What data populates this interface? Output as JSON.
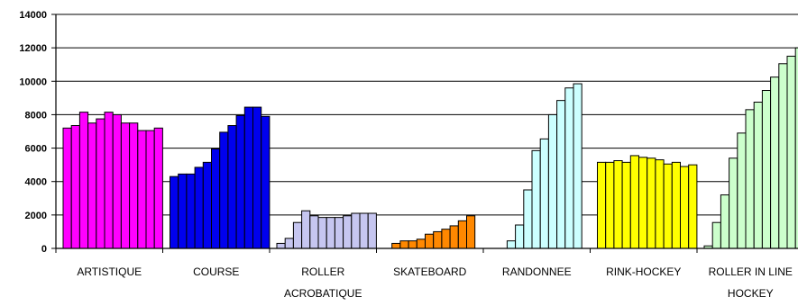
{
  "chart_data": {
    "type": "bar",
    "title": "",
    "xlabel": "",
    "ylabel": "",
    "ylim": [
      0,
      14000
    ],
    "yticks": [
      0,
      2000,
      4000,
      6000,
      8000,
      10000,
      12000,
      14000
    ],
    "grid": true,
    "legend": "none",
    "groups": [
      {
        "label_lines": [
          "ARTISTIQUE"
        ],
        "color": "#FF00FF",
        "values": [
          7200,
          7350,
          8150,
          7500,
          7750,
          8150,
          8000,
          7500,
          7500,
          7050,
          7050,
          7200
        ]
      },
      {
        "label_lines": [
          "COURSE"
        ],
        "color": "#0000EE",
        "values": [
          4300,
          4450,
          4450,
          4850,
          5150,
          5950,
          6950,
          7350,
          7950,
          8450,
          8450,
          7900
        ]
      },
      {
        "label_lines": [
          "ROLLER",
          "ACROBATIQUE"
        ],
        "color": "#C6C6F0",
        "values": [
          300,
          600,
          1550,
          2250,
          1950,
          1850,
          1850,
          1850,
          1950,
          2100,
          2100,
          2100
        ]
      },
      {
        "label_lines": [
          "SKATEBOARD"
        ],
        "color": "#FF8800",
        "values": [
          0,
          300,
          450,
          450,
          550,
          850,
          1000,
          1150,
          1350,
          1650,
          1950
        ]
      },
      {
        "label_lines": [
          "RANDONNEE"
        ],
        "color": "#CCFFFF",
        "values": [
          0,
          0,
          450,
          1400,
          3500,
          5850,
          6550,
          8000,
          8850,
          9600,
          9850
        ]
      },
      {
        "label_lines": [
          "RINK-HOCKEY"
        ],
        "color": "#FFFF00",
        "values": [
          5150,
          5150,
          5250,
          5150,
          5550,
          5450,
          5400,
          5300,
          5050,
          5150,
          4900,
          5000
        ]
      },
      {
        "label_lines": [
          "ROLLER IN LINE",
          "HOCKEY"
        ],
        "color": "#CCFFCC",
        "values": [
          150,
          1550,
          3200,
          5400,
          6900,
          8300,
          8750,
          9450,
          10250,
          11050,
          11500,
          12000
        ]
      }
    ]
  }
}
